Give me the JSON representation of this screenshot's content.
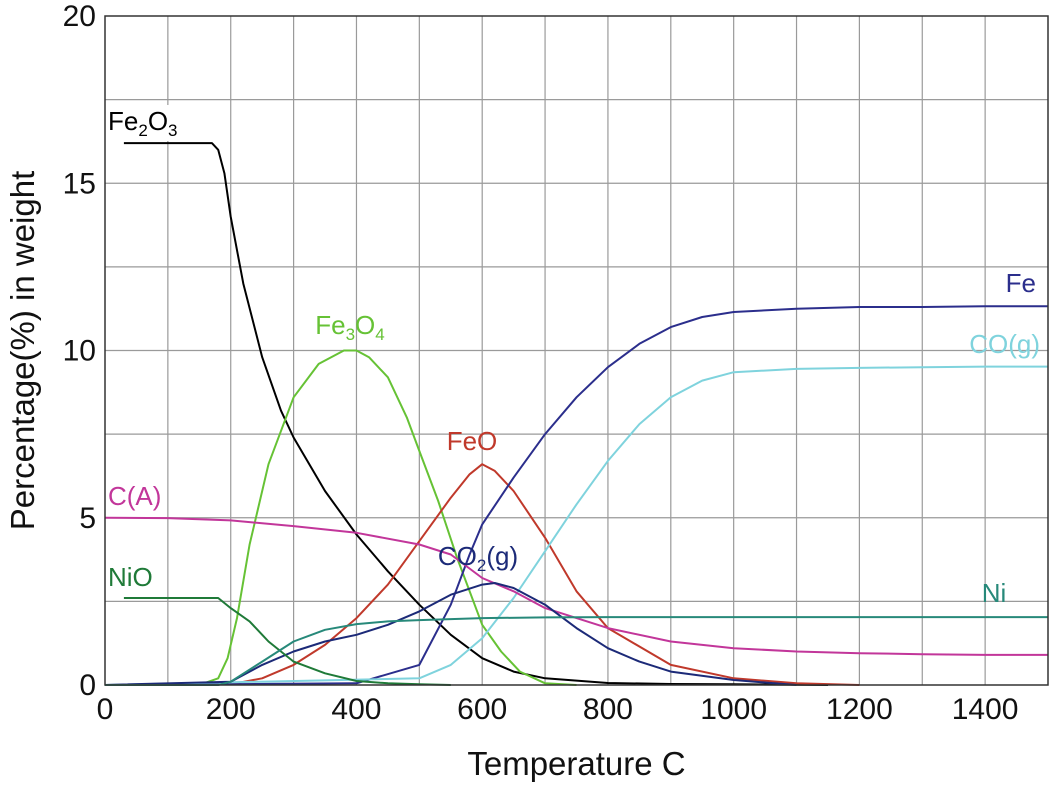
{
  "chart_data": {
    "type": "line",
    "xlabel": "Temperature C",
    "ylabel": "Percentage(%) in weight",
    "xlim": [
      0,
      1500
    ],
    "ylim": [
      0,
      20
    ],
    "xticks": [
      0,
      200,
      400,
      600,
      800,
      1000,
      1200,
      1400
    ],
    "yticks": [
      0,
      5,
      10,
      15,
      20
    ],
    "xgrid_step": 100,
    "ygrid_step": 2.5,
    "grid": true,
    "series": [
      {
        "name": "Fe2O3",
        "label_main": "Fe",
        "label_sub": "2",
        "label_main2": "O",
        "label_sub2": "3",
        "color": "#000000",
        "x": [
          30,
          100,
          170,
          180,
          190,
          200,
          220,
          250,
          280,
          300,
          350,
          400,
          450,
          500,
          550,
          600,
          650,
          700,
          800,
          900,
          1000,
          1100,
          1150
        ],
        "y": [
          16.2,
          16.2,
          16.2,
          16.0,
          15.3,
          14.0,
          12.0,
          9.8,
          8.2,
          7.4,
          5.8,
          4.5,
          3.4,
          2.4,
          1.5,
          0.8,
          0.4,
          0.2,
          0.06,
          0.03,
          0.02,
          0.01,
          0
        ]
      },
      {
        "name": "Fe3O4",
        "label_main": "Fe",
        "label_sub": "3",
        "label_main2": "O",
        "label_sub2": "4",
        "color": "#66c235",
        "x": [
          0,
          150,
          180,
          195,
          210,
          230,
          260,
          300,
          340,
          380,
          400,
          420,
          450,
          480,
          500,
          530,
          560,
          600,
          630,
          660,
          700,
          750
        ],
        "y": [
          0,
          0,
          0.2,
          0.8,
          2.0,
          4.2,
          6.6,
          8.6,
          9.6,
          10.0,
          10.0,
          9.8,
          9.2,
          8.0,
          7.0,
          5.5,
          3.8,
          1.8,
          1.0,
          0.4,
          0.05,
          0
        ]
      },
      {
        "name": "FeO",
        "label_main": "FeO",
        "color": "#c0392b",
        "x": [
          100,
          200,
          250,
          300,
          350,
          400,
          450,
          500,
          550,
          580,
          600,
          620,
          650,
          700,
          750,
          800,
          900,
          1000,
          1100,
          1200
        ],
        "y": [
          0,
          0.02,
          0.2,
          0.6,
          1.2,
          2.0,
          3.0,
          4.3,
          5.6,
          6.3,
          6.6,
          6.4,
          5.8,
          4.4,
          2.8,
          1.7,
          0.6,
          0.2,
          0.05,
          0
        ]
      },
      {
        "name": "Fe",
        "label_main": "Fe",
        "color": "#2b2e8c",
        "x": [
          0,
          400,
          500,
          550,
          580,
          600,
          650,
          700,
          750,
          800,
          850,
          900,
          950,
          1000,
          1100,
          1200,
          1300,
          1400,
          1500
        ],
        "y": [
          0,
          0.05,
          0.6,
          2.4,
          3.9,
          4.8,
          6.2,
          7.5,
          8.6,
          9.5,
          10.2,
          10.7,
          11.0,
          11.15,
          11.25,
          11.3,
          11.3,
          11.32,
          11.32
        ]
      },
      {
        "name": "CO(g)",
        "label_main": "CO(g)",
        "color": "#7fd3dd",
        "x": [
          0,
          500,
          550,
          600,
          650,
          700,
          750,
          800,
          850,
          900,
          950,
          1000,
          1100,
          1200,
          1300,
          1400,
          1500
        ],
        "y": [
          0,
          0.2,
          0.6,
          1.4,
          2.6,
          4.0,
          5.4,
          6.7,
          7.8,
          8.6,
          9.1,
          9.35,
          9.45,
          9.48,
          9.5,
          9.52,
          9.52
        ]
      },
      {
        "name": "C(A)",
        "label_main": "C(A)",
        "color": "#c2369a",
        "x": [
          0,
          100,
          200,
          300,
          400,
          500,
          550,
          600,
          650,
          700,
          800,
          900,
          1000,
          1100,
          1200,
          1300,
          1400,
          1500
        ],
        "y": [
          5.0,
          4.99,
          4.92,
          4.75,
          4.55,
          4.2,
          3.9,
          3.2,
          2.8,
          2.3,
          1.7,
          1.3,
          1.1,
          1.0,
          0.95,
          0.92,
          0.9,
          0.9
        ]
      },
      {
        "name": "CO2(g)",
        "label_main": "CO",
        "label_sub": "2",
        "label_main2": "(g)",
        "color": "#1c2a78",
        "x": [
          0,
          200,
          250,
          300,
          350,
          400,
          450,
          500,
          550,
          600,
          620,
          650,
          700,
          750,
          800,
          850,
          900,
          1000,
          1100
        ],
        "y": [
          0,
          0.1,
          0.6,
          1.0,
          1.3,
          1.5,
          1.8,
          2.2,
          2.7,
          3.0,
          3.05,
          2.9,
          2.4,
          1.7,
          1.1,
          0.7,
          0.4,
          0.15,
          0
        ]
      },
      {
        "name": "NiO",
        "label_main": "NiO",
        "color": "#1f7a38",
        "x": [
          30,
          100,
          150,
          180,
          200,
          230,
          260,
          300,
          350,
          400,
          450,
          500,
          550
        ],
        "y": [
          2.6,
          2.6,
          2.6,
          2.6,
          2.3,
          1.9,
          1.3,
          0.7,
          0.35,
          0.12,
          0.05,
          0.02,
          0
        ]
      },
      {
        "name": "Ni",
        "label_main": "Ni",
        "color": "#27897a",
        "x": [
          0,
          180,
          200,
          250,
          300,
          350,
          400,
          450,
          500,
          550,
          600,
          700,
          800,
          1000,
          1200,
          1500
        ],
        "y": [
          0,
          0,
          0.1,
          0.7,
          1.3,
          1.65,
          1.82,
          1.9,
          1.94,
          1.97,
          2.0,
          2.02,
          2.03,
          2.03,
          2.03,
          2.03
        ]
      }
    ]
  }
}
